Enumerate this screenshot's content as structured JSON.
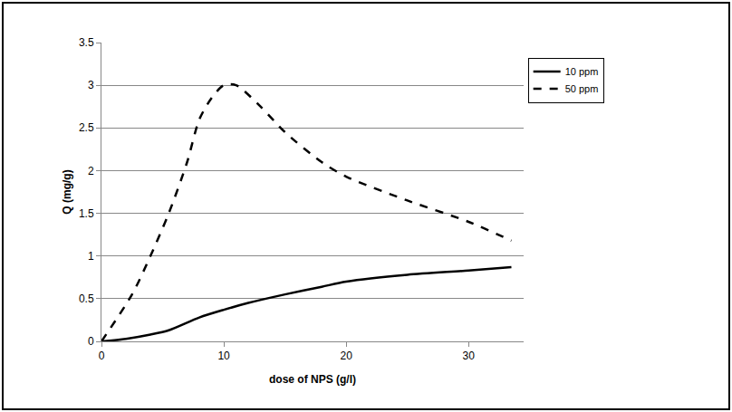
{
  "chart_data": {
    "type": "line",
    "x_label": "dose of NPS (g/l)",
    "y_label": "Q (mg/g)",
    "xlim": [
      0,
      34.5
    ],
    "xticks": [
      0,
      10,
      20,
      30
    ],
    "ylim": [
      0,
      3.5
    ],
    "yticks": [
      0,
      0.5,
      1,
      1.5,
      2,
      2.5,
      3,
      3.5
    ],
    "grid": true,
    "legend": "top right",
    "series": [
      {
        "name": "10 ppm",
        "color": "#000000",
        "line_style": "solid",
        "x": [
          0,
          2,
          4,
          5.5,
          8,
          10,
          12,
          15,
          18,
          20,
          25,
          30,
          33.5
        ],
        "values": [
          0,
          0.03,
          0.08,
          0.13,
          0.28,
          0.37,
          0.45,
          0.55,
          0.64,
          0.7,
          0.78,
          0.83,
          0.87
        ]
      },
      {
        "name": "50 ppm",
        "color": "#000000",
        "line_style": "dash",
        "x": [
          0,
          2.5,
          4,
          5.5,
          7,
          8,
          9,
          10,
          11,
          13,
          15,
          18,
          20,
          25,
          30,
          33.5
        ],
        "values": [
          0,
          0.55,
          1.0,
          1.5,
          2.1,
          2.6,
          2.85,
          3.0,
          3.0,
          2.75,
          2.45,
          2.1,
          1.93,
          1.65,
          1.4,
          1.18
        ]
      }
    ]
  }
}
